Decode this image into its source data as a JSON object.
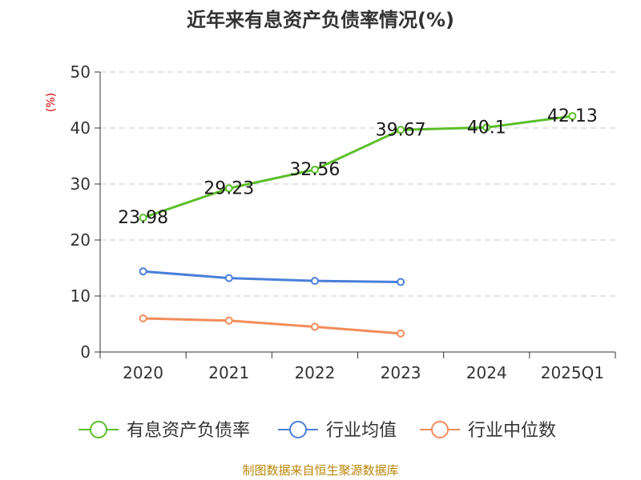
{
  "chart_data": {
    "type": "line",
    "title": "近年来有息资产负债率情况(%)",
    "ylabel": "(%)",
    "xlabel": "",
    "categories": [
      "2020",
      "2021",
      "2022",
      "2023",
      "2024",
      "2025Q1"
    ],
    "ylim": [
      0,
      50
    ],
    "yticks": [
      0,
      10,
      20,
      30,
      40,
      50
    ],
    "grid": true,
    "legend_position": "bottom",
    "series": [
      {
        "name": "有息资产负债率",
        "color": "#5cbf2a",
        "show_labels": true,
        "values": [
          23.98,
          29.23,
          32.56,
          39.67,
          40.1,
          42.13
        ]
      },
      {
        "name": "行业均值",
        "color": "#4a7fdb",
        "show_labels": false,
        "values": [
          14.4,
          13.2,
          12.7,
          12.5,
          null,
          null
        ]
      },
      {
        "name": "行业中位数",
        "color": "#f28c5a",
        "show_labels": false,
        "values": [
          6.0,
          5.6,
          4.5,
          3.3,
          null,
          null
        ]
      }
    ]
  },
  "source": "制图数据来自恒生聚源数据库"
}
